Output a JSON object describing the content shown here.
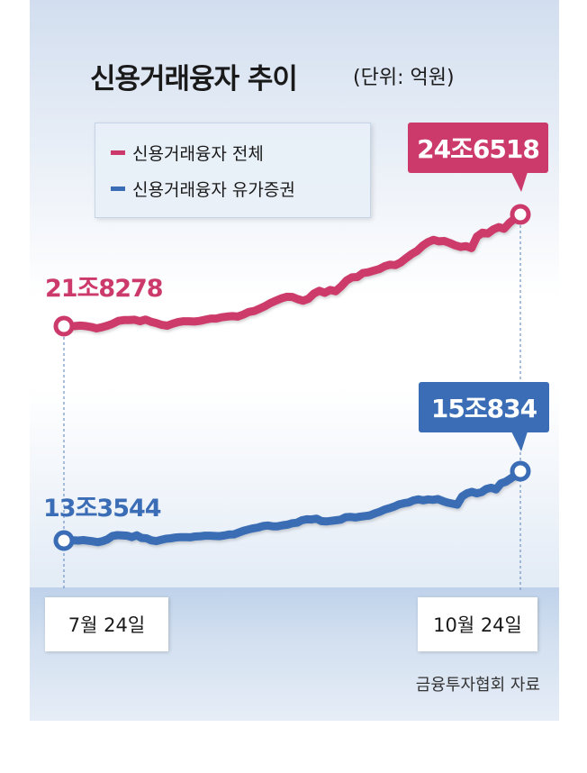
{
  "chart_data": {
    "type": "line",
    "title": "신용거래융자 추이",
    "unit": "(단위: 억원)",
    "x_labels": [
      "7월 24일",
      "10월 24일"
    ],
    "series": [
      {
        "name": "신용거래융자 전체",
        "color": "#cc3a6b",
        "start_label": "21조8278",
        "end_label": "24조6518",
        "start_value": 218278,
        "end_value": 246518,
        "values": [
          218278,
          218250,
          218300,
          218420,
          218300,
          218080,
          217700,
          218000,
          218400,
          218900,
          219600,
          219800,
          219800,
          219900,
          219500,
          219950,
          219400,
          219050,
          218600,
          218400,
          218900,
          219300,
          219500,
          219500,
          219450,
          219600,
          219900,
          220200,
          220200,
          220500,
          220700,
          220800,
          220700,
          221200,
          221850,
          222100,
          222700,
          223300,
          224100,
          224700,
          225300,
          225700,
          225650,
          225100,
          224700,
          225200,
          226500,
          227200,
          226700,
          227400,
          227100,
          228300,
          229800,
          230600,
          230700,
          231700,
          231900,
          232300,
          232700,
          233400,
          233800,
          233700,
          234400,
          235500,
          236500,
          237300,
          238600,
          239500,
          240100,
          239700,
          239800,
          239300,
          238700,
          238300,
          238500,
          238000,
          240900,
          241900,
          241700,
          242700,
          243300,
          242900,
          244400,
          245500,
          246518
        ]
      },
      {
        "name": "신용거래융자 유가증권",
        "color": "#3a6db5",
        "start_label": "13조3544",
        "end_label": "15조834",
        "start_value": 133544,
        "end_value": 150834,
        "values": [
          133544,
          133600,
          133600,
          133550,
          133650,
          133500,
          133350,
          133150,
          133400,
          133850,
          134700,
          134900,
          134850,
          134750,
          134400,
          134850,
          134200,
          134100,
          133600,
          133400,
          133700,
          134000,
          134100,
          134300,
          134400,
          134400,
          134350,
          134550,
          134600,
          134750,
          134750,
          134700,
          134650,
          134800,
          135050,
          135100,
          135550,
          136000,
          136300,
          136600,
          136800,
          137150,
          137300,
          137100,
          137100,
          137350,
          137500,
          137850,
          138000,
          138600,
          138850,
          138800,
          139000,
          138400,
          138300,
          138450,
          138600,
          138750,
          139350,
          139450,
          139300,
          139500,
          139650,
          139800,
          140300,
          140700,
          141250,
          141600,
          142000,
          142550,
          142850,
          143050,
          143550,
          143800,
          143550,
          143800,
          143700,
          143900,
          143400,
          143000,
          142750,
          142500,
          144550,
          145300,
          145700,
          145300,
          145600,
          146400,
          146700,
          146300,
          147800,
          148200,
          149000,
          149800,
          150834
        ]
      }
    ]
  },
  "source": "금융투자협회 자료"
}
